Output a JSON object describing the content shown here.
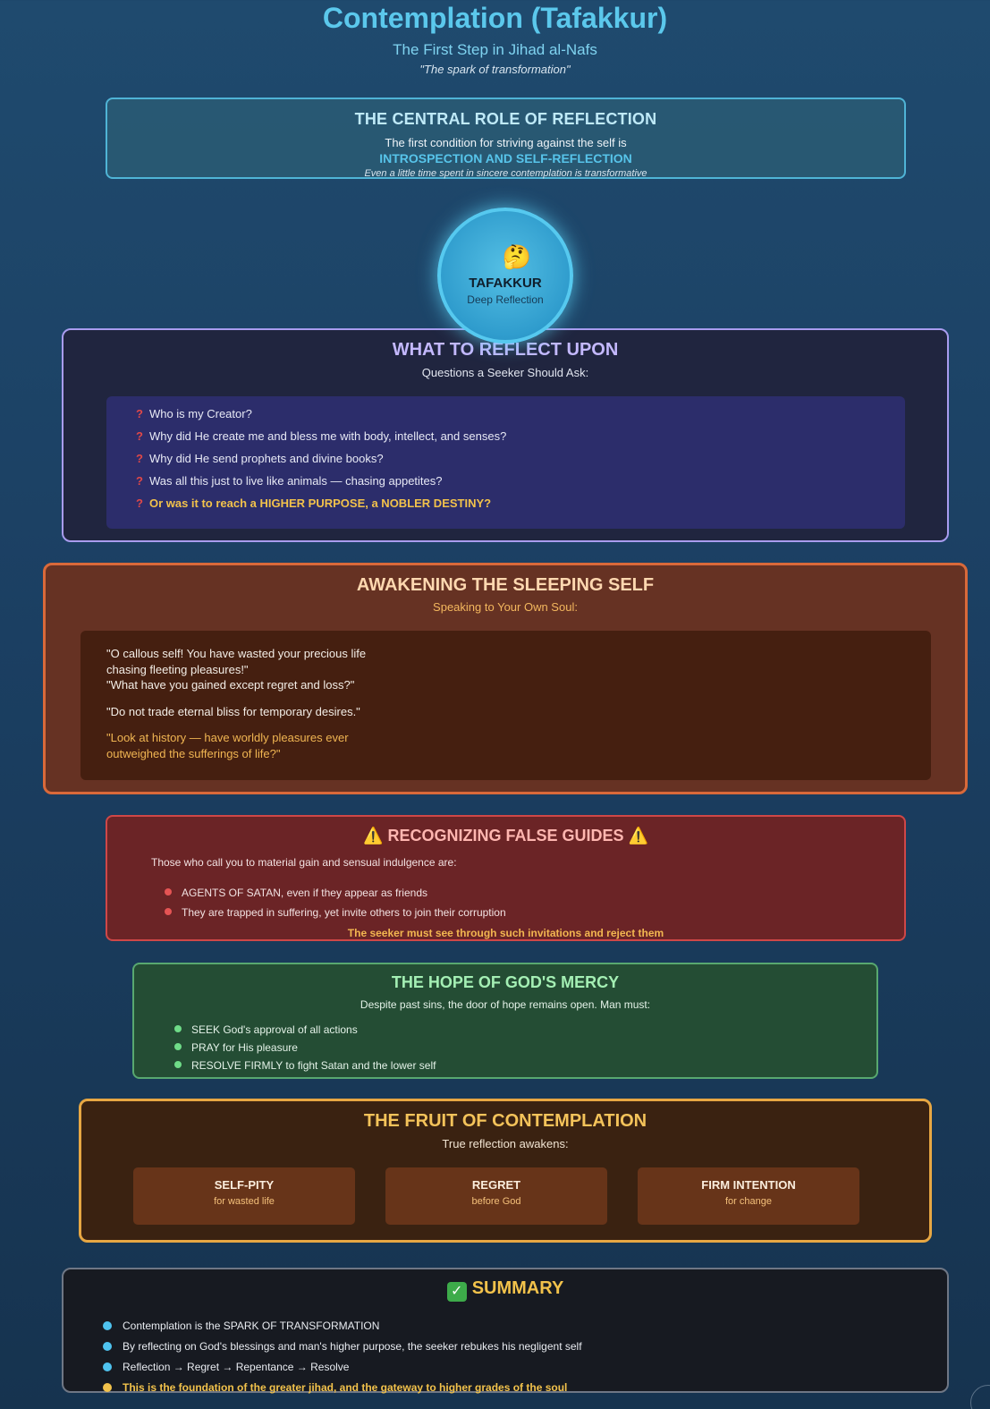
{
  "header": {
    "title": "Contemplation (Tafakkur)",
    "subtitle": "The First Step in Jihad al-Nafs",
    "tagline": "\"The spark of transformation\""
  },
  "central": {
    "heading": "THE CENTRAL ROLE OF REFLECTION",
    "line1": "The first condition for striving against the self is",
    "line2": "INTROSPECTION AND SELF-REFLECTION",
    "line3": "Even a little time spent in sincere contemplation is transformative"
  },
  "circle": {
    "emoji": "🤔",
    "title": "TAFAKKUR",
    "subtitle": "Deep Reflection"
  },
  "reflect": {
    "heading": "WHAT TO REFLECT UPON",
    "subheading": "Questions a Seeker Should Ask:",
    "mark": "?",
    "questions": [
      "Who is my Creator?",
      "Why did He create me and bless me with body, intellect, and senses?",
      "Why did He send prophets and divine books?",
      "Was all this just to live like animals — chasing appetites?",
      "Or was it to reach a HIGHER PURPOSE, a NOBLER DESTINY?"
    ]
  },
  "awakening": {
    "heading": "AWAKENING THE SLEEPING SELF",
    "subheading": "Speaking to Your Own Soul:",
    "quotes": [
      "\"O callous self! You have wasted your precious life chasing fleeting pleasures!\"",
      "\"What have you gained except regret and loss?\"",
      "\"Do not trade eternal bliss for temporary desires.\"",
      "\"Look at history — have worldly pleasures ever outweighed the sufferings of life?\""
    ]
  },
  "false_guides": {
    "heading": "⚠️ RECOGNIZING FALSE GUIDES ⚠️",
    "intro": "Those who call you to material gain and sensual indulgence are:",
    "bullets": [
      "AGENTS OF SATAN, even if they appear as friends",
      "They are trapped in suffering, yet invite others to join their corruption"
    ],
    "footer": "The seeker must see through such invitations and reject them"
  },
  "hope": {
    "heading": "THE HOPE OF GOD'S MERCY",
    "intro": "Despite past sins, the door of hope remains open. Man must:",
    "bullets": [
      "SEEK God's approval of all actions",
      "PRAY for His pleasure",
      "RESOLVE FIRMLY to fight Satan and the lower self"
    ]
  },
  "fruit": {
    "heading": "THE FRUIT OF CONTEMPLATION",
    "subheading": "True reflection awakens:",
    "cards": [
      {
        "title": "SELF-PITY",
        "subtitle": "for wasted life"
      },
      {
        "title": "REGRET",
        "subtitle": "before God"
      },
      {
        "title": "FIRM INTENTION",
        "subtitle": "for change"
      }
    ]
  },
  "summary": {
    "check": "✓",
    "heading": "SUMMARY",
    "bullets": [
      "Contemplation is the SPARK OF TRANSFORMATION",
      "By reflecting on God's blessings and man's higher purpose, the seeker rebukes his negligent self",
      "Reflection → Regret → Repentance → Resolve",
      "This is the foundation of the greater jihad, and the gateway to higher grades of the soul"
    ]
  },
  "colors": {
    "title": "#5bc8ec",
    "reflect_border": "#a99cef",
    "awaken_border": "#d9693a",
    "false_border": "#cf4747",
    "hope_border": "#58a870",
    "fruit_border": "#e7a743",
    "summary_accent": "#f2c24b"
  }
}
